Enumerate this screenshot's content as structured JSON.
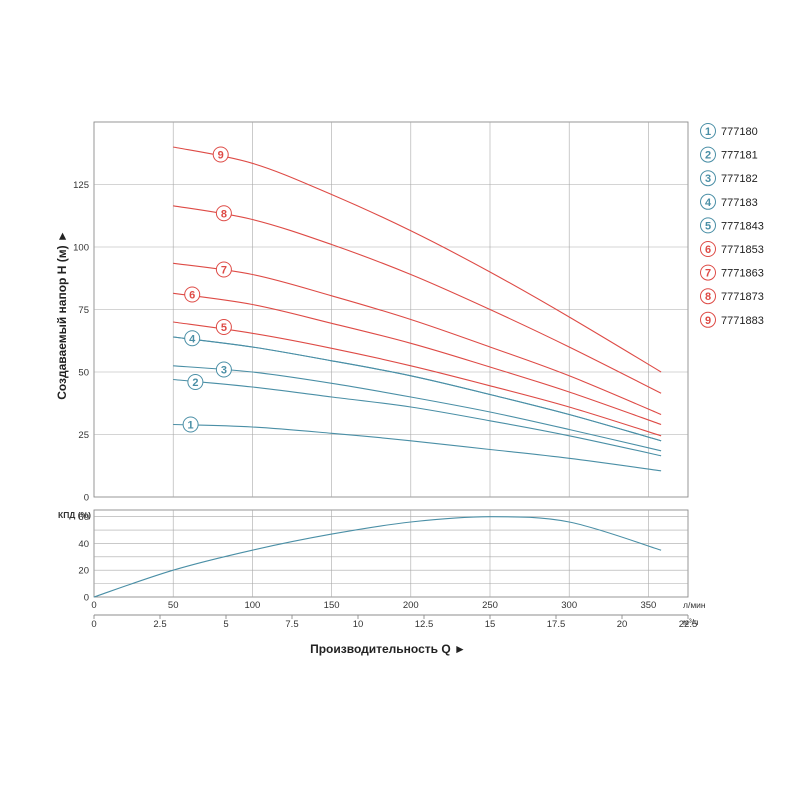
{
  "colors": {
    "blue": "#4a8fa6",
    "red": "#de4b46",
    "grid": "#a9a9a9"
  },
  "chart_data": [
    {
      "type": "line",
      "ylabel": "Создаваемый напор H (м) ►",
      "xlabel": "Производительность Q ►",
      "x_unit_lpm": "л/мин",
      "x_unit_m3h": "м³/ч",
      "ylim": [
        0,
        150
      ],
      "yticks": [
        "0",
        "25",
        "50",
        "75",
        "100",
        "125"
      ],
      "yticks_values": [
        0,
        25,
        50,
        75,
        100,
        125
      ],
      "xlim_lpm": [
        0,
        375
      ],
      "xticks_lpm": [
        "0",
        "50",
        "100",
        "150",
        "200",
        "250",
        "300",
        "350"
      ],
      "xticks_lpm_values": [
        0,
        50,
        100,
        150,
        200,
        250,
        300,
        350
      ],
      "xticks_m3h": [
        "0",
        "2.5",
        "5",
        "7.5",
        "10",
        "12.5",
        "15",
        "17.5",
        "20",
        "22.5"
      ],
      "xticks_m3h_values": [
        0,
        2.5,
        5,
        7.5,
        10,
        12.5,
        15,
        17.5,
        20,
        22.5
      ],
      "series": [
        {
          "num": "1",
          "name": "777180",
          "color": "blue",
          "x": [
            50,
            100,
            150,
            200,
            250,
            300,
            358
          ],
          "y": [
            29,
            28,
            25.5,
            22.5,
            19,
            15.5,
            10.5
          ],
          "label_at": [
            61,
            29
          ]
        },
        {
          "num": "2",
          "name": "777181",
          "color": "blue",
          "x": [
            50,
            100,
            150,
            200,
            250,
            300,
            358
          ],
          "y": [
            47,
            44,
            40,
            36,
            30.5,
            24.5,
            16.5
          ],
          "label_at": [
            64,
            46
          ]
        },
        {
          "num": "3",
          "name": "777182",
          "color": "blue",
          "x": [
            50,
            100,
            150,
            200,
            250,
            300,
            358
          ],
          "y": [
            52.5,
            50,
            45.5,
            40,
            34,
            27,
            18.5
          ],
          "label_at": [
            82,
            51
          ]
        },
        {
          "num": "4",
          "name": "777183",
          "color": "blue",
          "x": [
            50,
            100,
            150,
            200,
            250,
            300,
            358
          ],
          "y": [
            64,
            60,
            54.5,
            48.5,
            41,
            33,
            22.5
          ],
          "label_at": [
            62,
            63.5
          ]
        },
        {
          "num": "5",
          "name": "7771843",
          "color": "blue",
          "x": [
            50,
            100,
            150,
            200,
            250,
            300,
            358
          ],
          "y": [
            64,
            60,
            54.5,
            48.5,
            41,
            33,
            22.5
          ],
          "label_at": null
        },
        {
          "num": "5",
          "name": "7771843",
          "color": "red",
          "x": [
            50,
            100,
            150,
            200,
            250,
            300,
            358
          ],
          "y": [
            70,
            65.5,
            59.5,
            52.5,
            44.5,
            36,
            24.5
          ],
          "label_at": [
            82,
            68
          ]
        },
        {
          "num": "6",
          "name": "7771853",
          "color": "red",
          "x": [
            50,
            100,
            150,
            200,
            250,
            300,
            358
          ],
          "y": [
            81.5,
            77,
            69.5,
            61.5,
            52,
            42,
            29
          ],
          "label_at": [
            62,
            81
          ]
        },
        {
          "num": "7",
          "name": "7771863",
          "color": "red",
          "x": [
            50,
            100,
            150,
            200,
            250,
            300,
            358
          ],
          "y": [
            93.5,
            89,
            80.5,
            71,
            60,
            48.5,
            33
          ],
          "label_at": [
            82,
            91
          ]
        },
        {
          "num": "8",
          "name": "7771873",
          "color": "red",
          "x": [
            50,
            100,
            150,
            200,
            250,
            300,
            358
          ],
          "y": [
            116.5,
            111,
            101,
            89,
            75,
            60,
            41.5
          ],
          "label_at": [
            82,
            113.5
          ]
        },
        {
          "num": "9",
          "name": "7771883",
          "color": "red",
          "x": [
            50,
            100,
            150,
            200,
            250,
            300,
            358
          ],
          "y": [
            140,
            133.5,
            121,
            106.5,
            90,
            72,
            50
          ],
          "label_at": [
            80,
            137
          ]
        }
      ]
    },
    {
      "type": "line",
      "ylabel": "КПД (%)",
      "ylim": [
        0,
        65
      ],
      "yticks": [
        "0",
        "20",
        "40",
        "60"
      ],
      "yticks_values": [
        0,
        20,
        40,
        60
      ],
      "series": [
        {
          "name": "КПД",
          "color": "blue",
          "x": [
            0,
            50,
            100,
            150,
            200,
            250,
            300,
            358
          ],
          "y": [
            0,
            20,
            35,
            47,
            56,
            60,
            56,
            35
          ]
        }
      ]
    }
  ],
  "legend": [
    {
      "num": "1",
      "name": "777180",
      "color": "blue"
    },
    {
      "num": "2",
      "name": "777181",
      "color": "blue"
    },
    {
      "num": "3",
      "name": "777182",
      "color": "blue"
    },
    {
      "num": "4",
      "name": "777183",
      "color": "blue"
    },
    {
      "num": "5",
      "name": "7771843",
      "color": "blue"
    },
    {
      "num": "6",
      "name": "7771853",
      "color": "red"
    },
    {
      "num": "7",
      "name": "7771863",
      "color": "red"
    },
    {
      "num": "8",
      "name": "7771873",
      "color": "red"
    },
    {
      "num": "9",
      "name": "7771883",
      "color": "red"
    }
  ]
}
